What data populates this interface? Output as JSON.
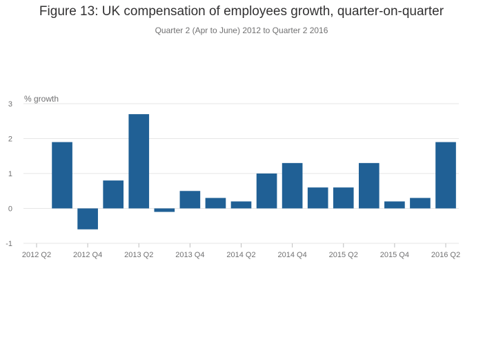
{
  "chart_data": {
    "type": "bar",
    "title": "Figure 13: UK compensation of employees growth, quarter-on-quarter",
    "subtitle": "Quarter 2 (Apr to June) 2012 to Quarter 2 2016",
    "ylabel": "% growth",
    "xlabel": "",
    "ylim": [
      -1,
      3
    ],
    "yticks": [
      -1,
      0,
      1,
      2,
      3
    ],
    "grid": true,
    "colors": {
      "bar": "#206095",
      "grid": "#e6e6e6",
      "text": "#707071"
    },
    "categories": [
      "2012 Q2",
      "2012 Q3",
      "2012 Q4",
      "2013 Q1",
      "2013 Q2",
      "2013 Q3",
      "2013 Q4",
      "2014 Q1",
      "2014 Q2",
      "2014 Q3",
      "2014 Q4",
      "2015 Q1",
      "2015 Q2",
      "2015 Q3",
      "2015 Q4",
      "2016 Q1",
      "2016 Q2"
    ],
    "xtick_labels": [
      "2012 Q2",
      "2012 Q4",
      "2013 Q2",
      "2013 Q4",
      "2014 Q2",
      "2014 Q4",
      "2015 Q2",
      "2015 Q4",
      "2016 Q2"
    ],
    "values": [
      null,
      1.9,
      -0.6,
      0.8,
      2.7,
      -0.1,
      0.5,
      0.3,
      0.2,
      1.0,
      1.3,
      0.6,
      0.6,
      1.3,
      0.2,
      0.3,
      1.9
    ]
  }
}
